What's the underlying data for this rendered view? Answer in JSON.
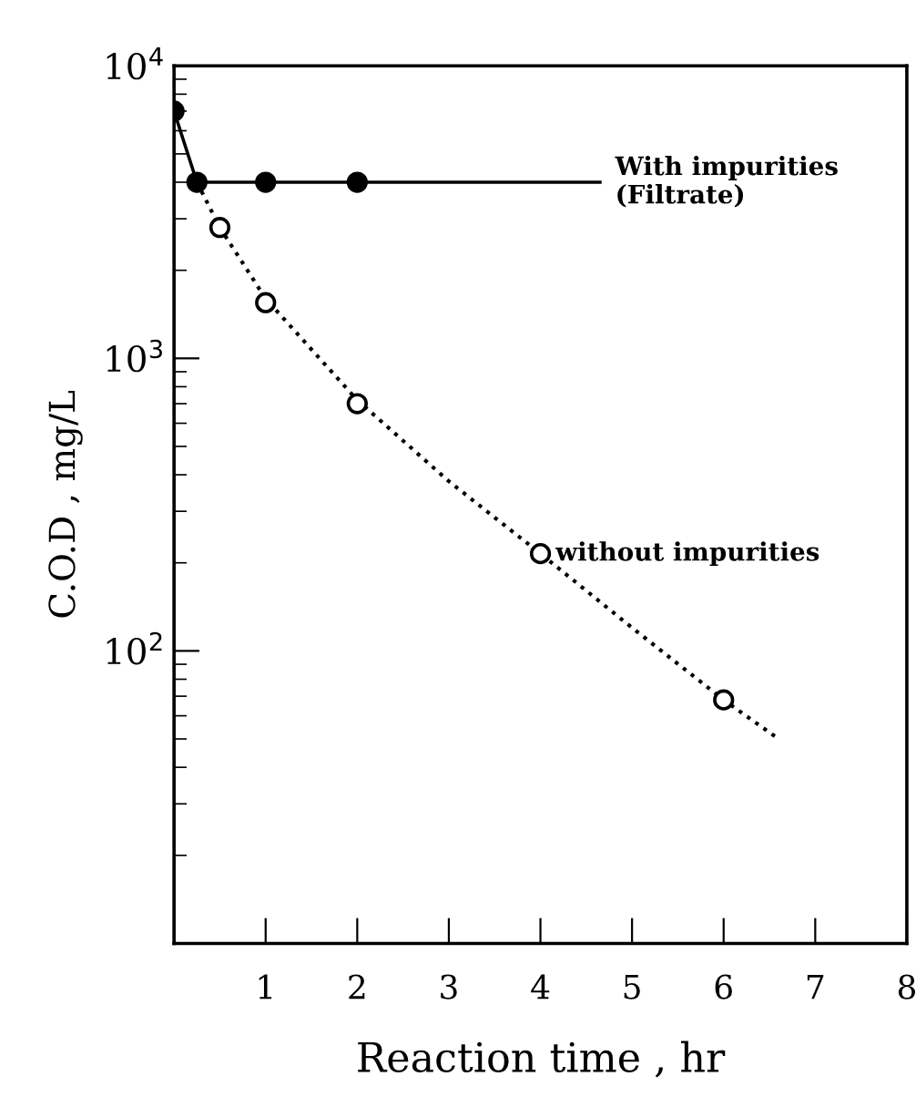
{
  "chart_data": {
    "type": "scatter",
    "xlabel": "Reaction time , hr",
    "ylabel": "C.O.D , mg/L",
    "log": "y",
    "xlim": [
      0,
      8
    ],
    "ylim": [
      10,
      10000
    ],
    "xticks": [
      1,
      2,
      3,
      4,
      5,
      6,
      7,
      8
    ],
    "yticks": [
      {
        "value": 10,
        "label": null
      },
      {
        "value": 100,
        "label": "10$^{2}$"
      },
      {
        "value": 1000,
        "label": "10$^{3}$"
      },
      {
        "value": 10000,
        "label": "10$^{4}$"
      }
    ],
    "grid": false,
    "legend": false,
    "series": [
      {
        "marker": "circle",
        "color": "#000000",
        "x": [
          0,
          0.25,
          1,
          2
        ],
        "values": [
          7000,
          4000,
          4000,
          4000
        ]
      },
      {
        "type": "line",
        "marker": "none",
        "line_style": "solid",
        "color": "#000000",
        "x": [
          0,
          0.25,
          4.65
        ],
        "values": [
          7000,
          4000,
          4000
        ]
      },
      {
        "marker": "circle",
        "color": "#ffffff",
        "x": [
          0.5,
          1,
          2,
          4,
          6
        ],
        "values": [
          2800,
          1550,
          700,
          215,
          68
        ]
      },
      {
        "type": "line",
        "marker": "none",
        "line_style": "dotted",
        "color": "#000000",
        "x": [
          0.25,
          0.5,
          1,
          2,
          3,
          4,
          5,
          6,
          6.6
        ],
        "values": [
          4000,
          2800,
          1600,
          720,
          380,
          215,
          120,
          68,
          50
        ]
      }
    ],
    "annotations": [
      {
        "text": "With impurities\n(Filtrate)",
        "x": 4.65,
        "y": 4000
      },
      {
        "text": "without impurities",
        "x": 4,
        "y": 215
      }
    ]
  }
}
